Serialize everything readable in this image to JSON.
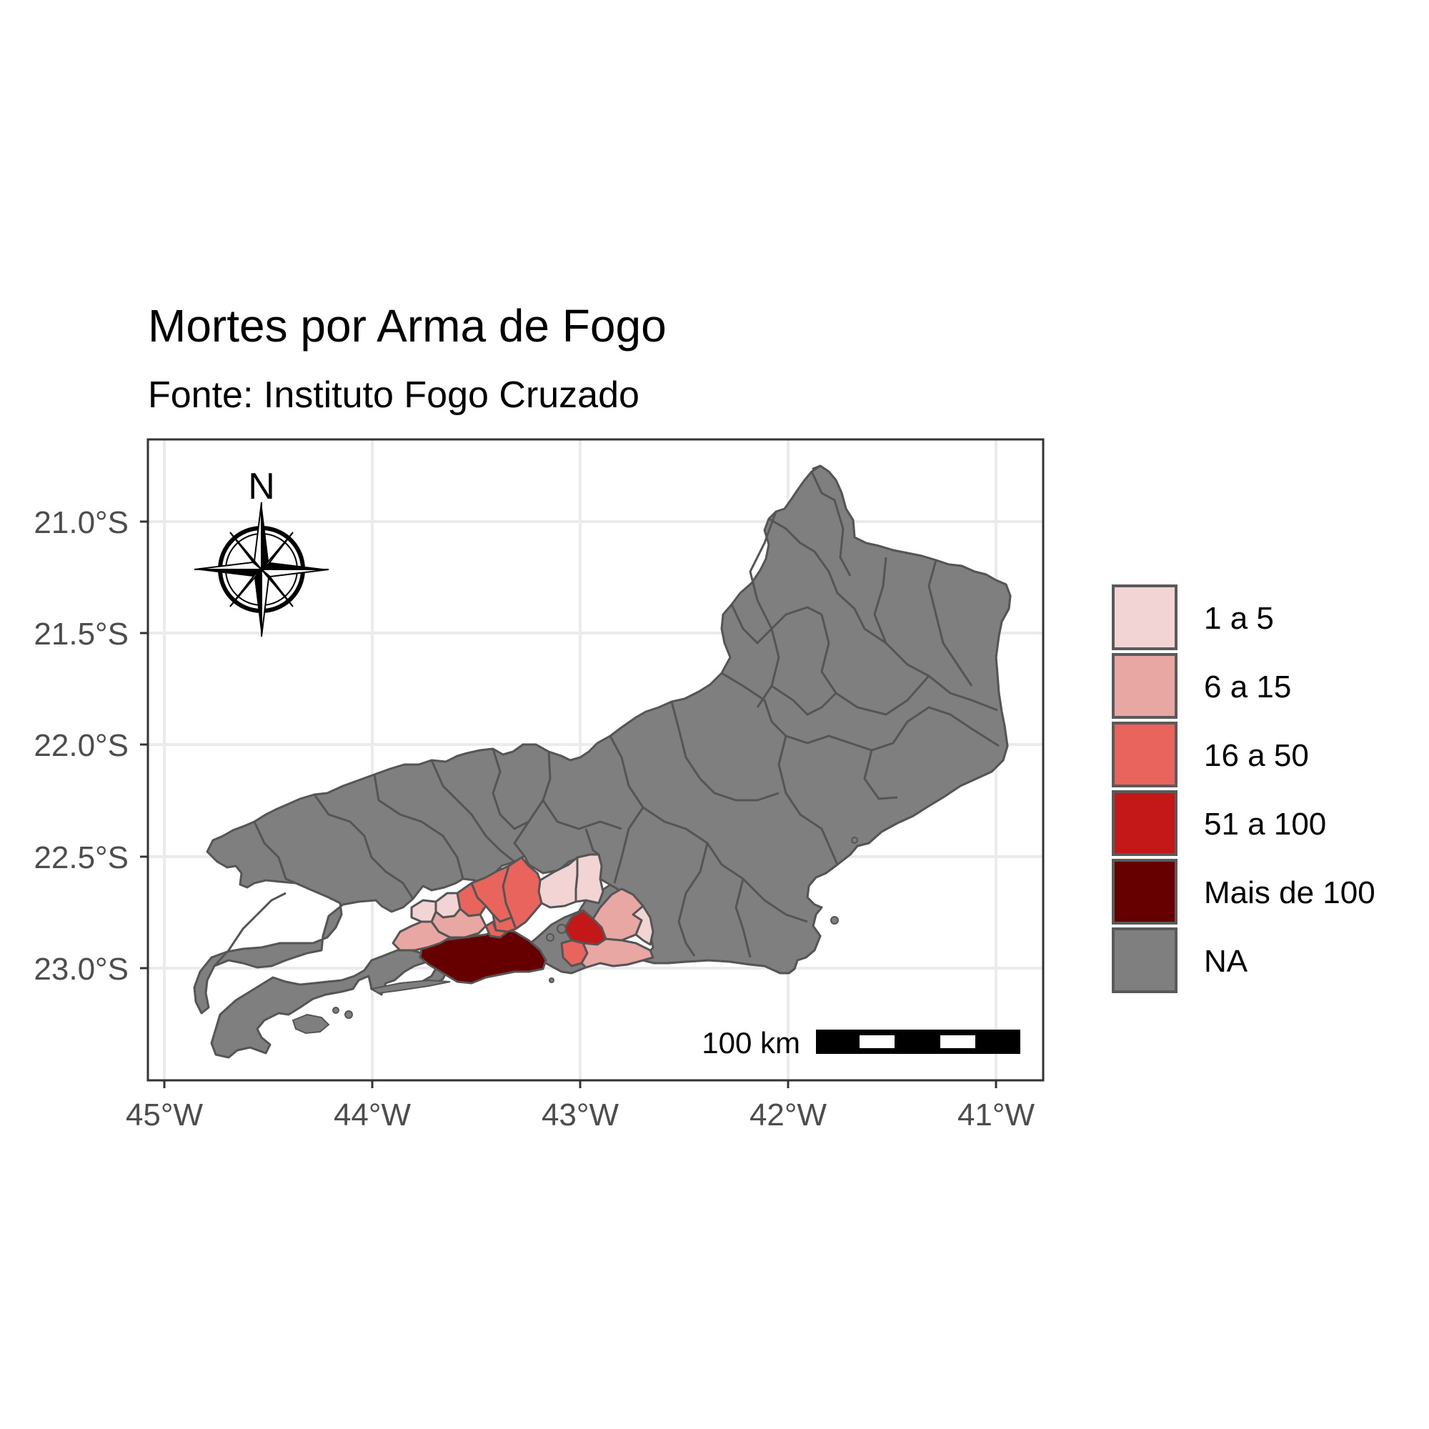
{
  "map": {
    "title": "Mortes por Arma de Fogo",
    "subtitle": "Fonte: Instituto Fogo Cruzado",
    "background": "#ffffff",
    "panel_border_color": "#333333",
    "grid_color": "#ebebeb",
    "x_axis": {
      "ticks": [
        "45°W",
        "44°W",
        "43°W",
        "42°W",
        "41°W"
      ]
    },
    "y_axis": {
      "ticks": [
        "21.0°S",
        "21.5°S",
        "22.0°S",
        "22.5°S",
        "23.0°S"
      ]
    },
    "north_arrow": {
      "label": "N",
      "icon": "compass-rose-icon"
    },
    "scale_bar": {
      "label": "100 km",
      "segments": 5
    },
    "legend": {
      "items": [
        {
          "label": "1 a 5",
          "color": "#f2d4d4"
        },
        {
          "label": "6 a 15",
          "color": "#e8a7a3"
        },
        {
          "label": "16 a 50",
          "color": "#e8645c"
        },
        {
          "label": "51 a 100",
          "color": "#c41717"
        },
        {
          "label": "Mais de 100",
          "color": "#660000"
        },
        {
          "label": "NA",
          "color": "#7f7f7f"
        }
      ]
    },
    "region_colors": {
      "na": "#7f7f7f",
      "c1_5": "#f2d4d4",
      "c6_15": "#e8a7a3",
      "c16_50": "#e8645c",
      "c51_100": "#c41717",
      "c100plus": "#660000",
      "boundary": "#555555"
    }
  }
}
